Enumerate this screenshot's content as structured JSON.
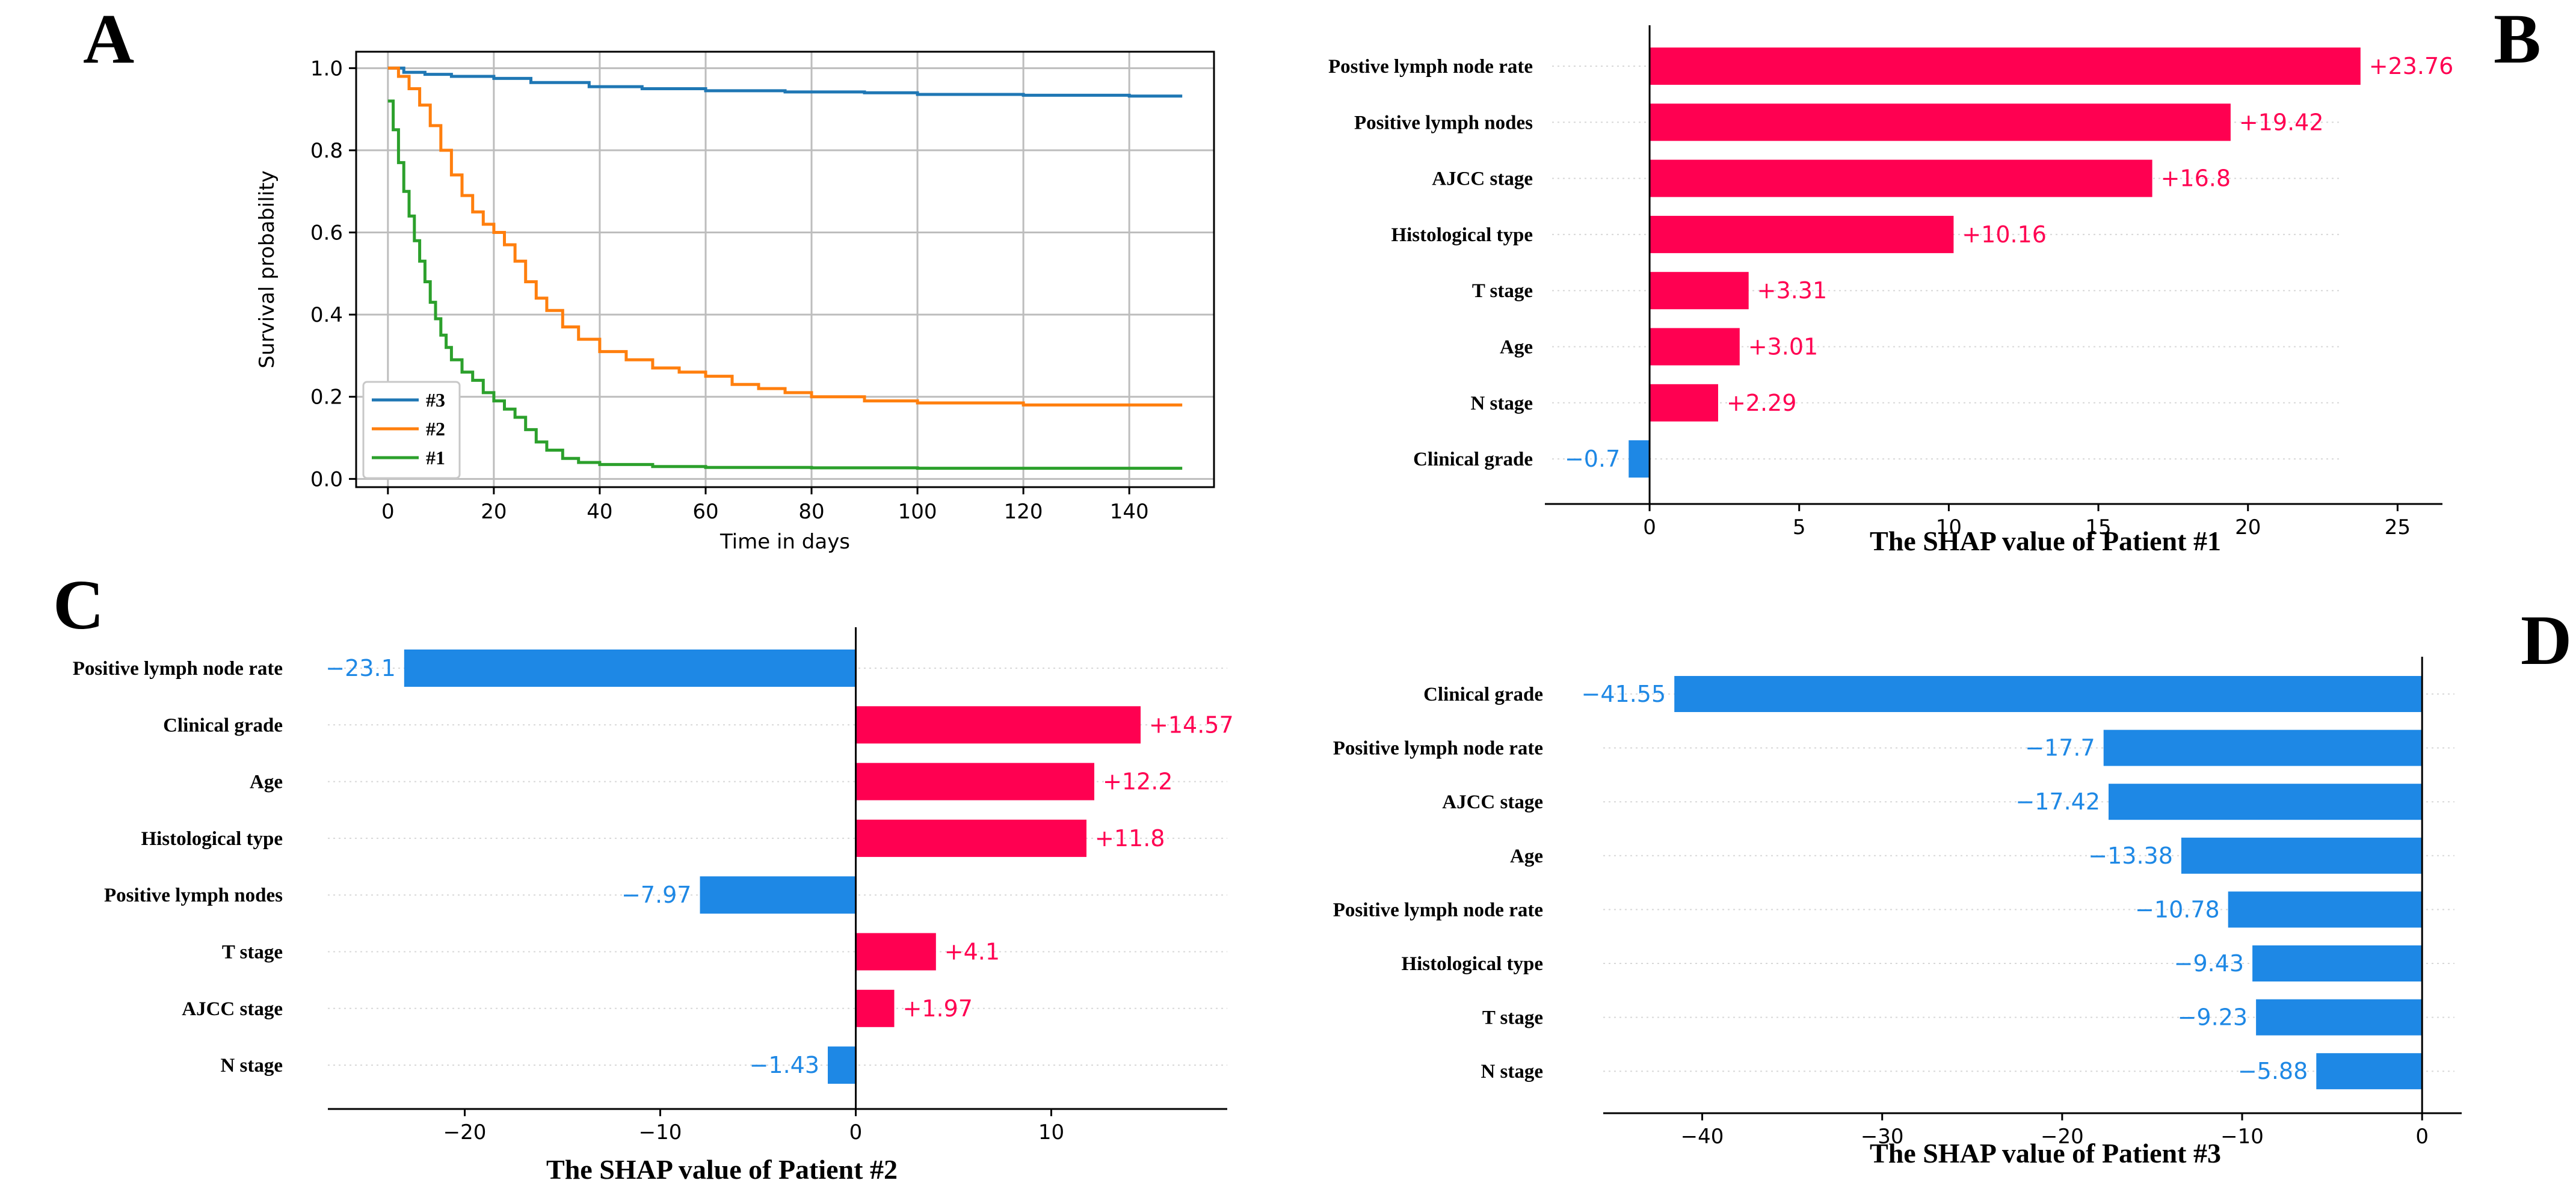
{
  "panel_letters": {
    "a": "A",
    "b": "B",
    "c": "C",
    "d": "D"
  },
  "colors": {
    "positive": "#ff0051",
    "negative": "#1e88e5"
  },
  "chart_data": [
    {
      "id": "A",
      "type": "line",
      "xlabel": "Time in days",
      "ylabel": "Survival probability",
      "xlim": [
        -6,
        156
      ],
      "ylim": [
        -0.02,
        1.04
      ],
      "xticks": [
        0,
        20,
        40,
        60,
        80,
        100,
        120,
        140
      ],
      "yticks": [
        0.0,
        0.2,
        0.4,
        0.6,
        0.8,
        1.0
      ],
      "grid": true,
      "legend_position": "lower-left",
      "series": [
        {
          "name": "#3",
          "color": "#1f77b4",
          "step": true,
          "x": [
            0,
            3,
            7,
            12,
            20,
            27,
            38,
            48,
            60,
            75,
            90,
            100,
            120,
            140,
            150
          ],
          "y": [
            1.0,
            0.99,
            0.985,
            0.98,
            0.975,
            0.965,
            0.955,
            0.95,
            0.945,
            0.942,
            0.94,
            0.936,
            0.934,
            0.932,
            0.932
          ]
        },
        {
          "name": "#2",
          "color": "#ff7f0e",
          "step": true,
          "x": [
            0,
            2,
            4,
            6,
            8,
            10,
            12,
            14,
            16,
            18,
            20,
            22,
            24,
            26,
            28,
            30,
            33,
            36,
            40,
            45,
            50,
            55,
            60,
            65,
            70,
            75,
            80,
            90,
            100,
            120,
            150
          ],
          "y": [
            1.0,
            0.98,
            0.95,
            0.91,
            0.86,
            0.8,
            0.74,
            0.69,
            0.65,
            0.62,
            0.6,
            0.57,
            0.53,
            0.48,
            0.44,
            0.41,
            0.37,
            0.34,
            0.31,
            0.29,
            0.27,
            0.26,
            0.25,
            0.23,
            0.22,
            0.21,
            0.2,
            0.19,
            0.185,
            0.18,
            0.18
          ]
        },
        {
          "name": "#1",
          "color": "#2ca02c",
          "step": true,
          "x": [
            0,
            1,
            2,
            3,
            4,
            5,
            6,
            7,
            8,
            9,
            10,
            11,
            12,
            14,
            16,
            18,
            20,
            22,
            24,
            26,
            28,
            30,
            33,
            36,
            40,
            50,
            60,
            80,
            100,
            150
          ],
          "y": [
            0.92,
            0.85,
            0.77,
            0.7,
            0.64,
            0.58,
            0.53,
            0.48,
            0.43,
            0.39,
            0.35,
            0.32,
            0.29,
            0.26,
            0.24,
            0.21,
            0.19,
            0.17,
            0.15,
            0.12,
            0.09,
            0.07,
            0.05,
            0.04,
            0.035,
            0.03,
            0.028,
            0.027,
            0.026,
            0.026
          ]
        }
      ]
    },
    {
      "id": "B",
      "type": "bar",
      "orientation": "horizontal",
      "xlabel": "The SHAP value of Patient #1",
      "xlim": [
        -3.5,
        26.5
      ],
      "xticks": [
        0,
        5,
        10,
        15,
        20,
        25
      ],
      "categories": [
        "Postive lymph node rate",
        "Positive lymph nodes",
        "AJCC stage",
        "Histological type",
        "T stage",
        "Age",
        "N stage",
        "Clinical grade"
      ],
      "values": [
        23.76,
        19.42,
        16.8,
        10.16,
        3.31,
        3.01,
        2.29,
        -0.7
      ],
      "value_labels": [
        "+23.76",
        "+19.42",
        "+16.8",
        "+10.16",
        "+3.31",
        "+3.01",
        "+2.29",
        "−0.7"
      ]
    },
    {
      "id": "C",
      "type": "bar",
      "orientation": "horizontal",
      "xlabel": "The SHAP value of Patient #2",
      "xlim": [
        -27,
        19
      ],
      "xticks": [
        -20,
        -10,
        0,
        10
      ],
      "categories": [
        "Positive lymph node rate",
        "Clinical grade",
        "Age",
        "Histological type",
        "Positive lymph nodes",
        "T stage",
        "AJCC stage",
        "N stage"
      ],
      "values": [
        -23.1,
        14.57,
        12.2,
        11.8,
        -7.97,
        4.1,
        1.97,
        -1.43
      ],
      "value_labels": [
        "−23.1",
        "+14.57",
        "+12.2",
        "+11.8",
        "−7.97",
        "+4.1",
        "+1.97",
        "−1.43"
      ]
    },
    {
      "id": "D",
      "type": "bar",
      "orientation": "horizontal",
      "xlabel": "The SHAP value of Patient #3",
      "xlim": [
        -45.5,
        2.2
      ],
      "xticks": [
        -40,
        -30,
        -20,
        -10,
        0
      ],
      "categories": [
        "Clinical grade",
        "Positive lymph node rate",
        "AJCC stage",
        "Age",
        "Positive lymph node rate",
        "Histological type",
        "T stage",
        "N stage"
      ],
      "values": [
        -41.55,
        -17.7,
        -17.42,
        -13.38,
        -10.78,
        -9.43,
        -9.23,
        -5.88
      ],
      "value_labels": [
        "−41.55",
        "−17.7",
        "−17.42",
        "−13.38",
        "−10.78",
        "−9.43",
        "−9.23",
        "−5.88"
      ]
    }
  ]
}
